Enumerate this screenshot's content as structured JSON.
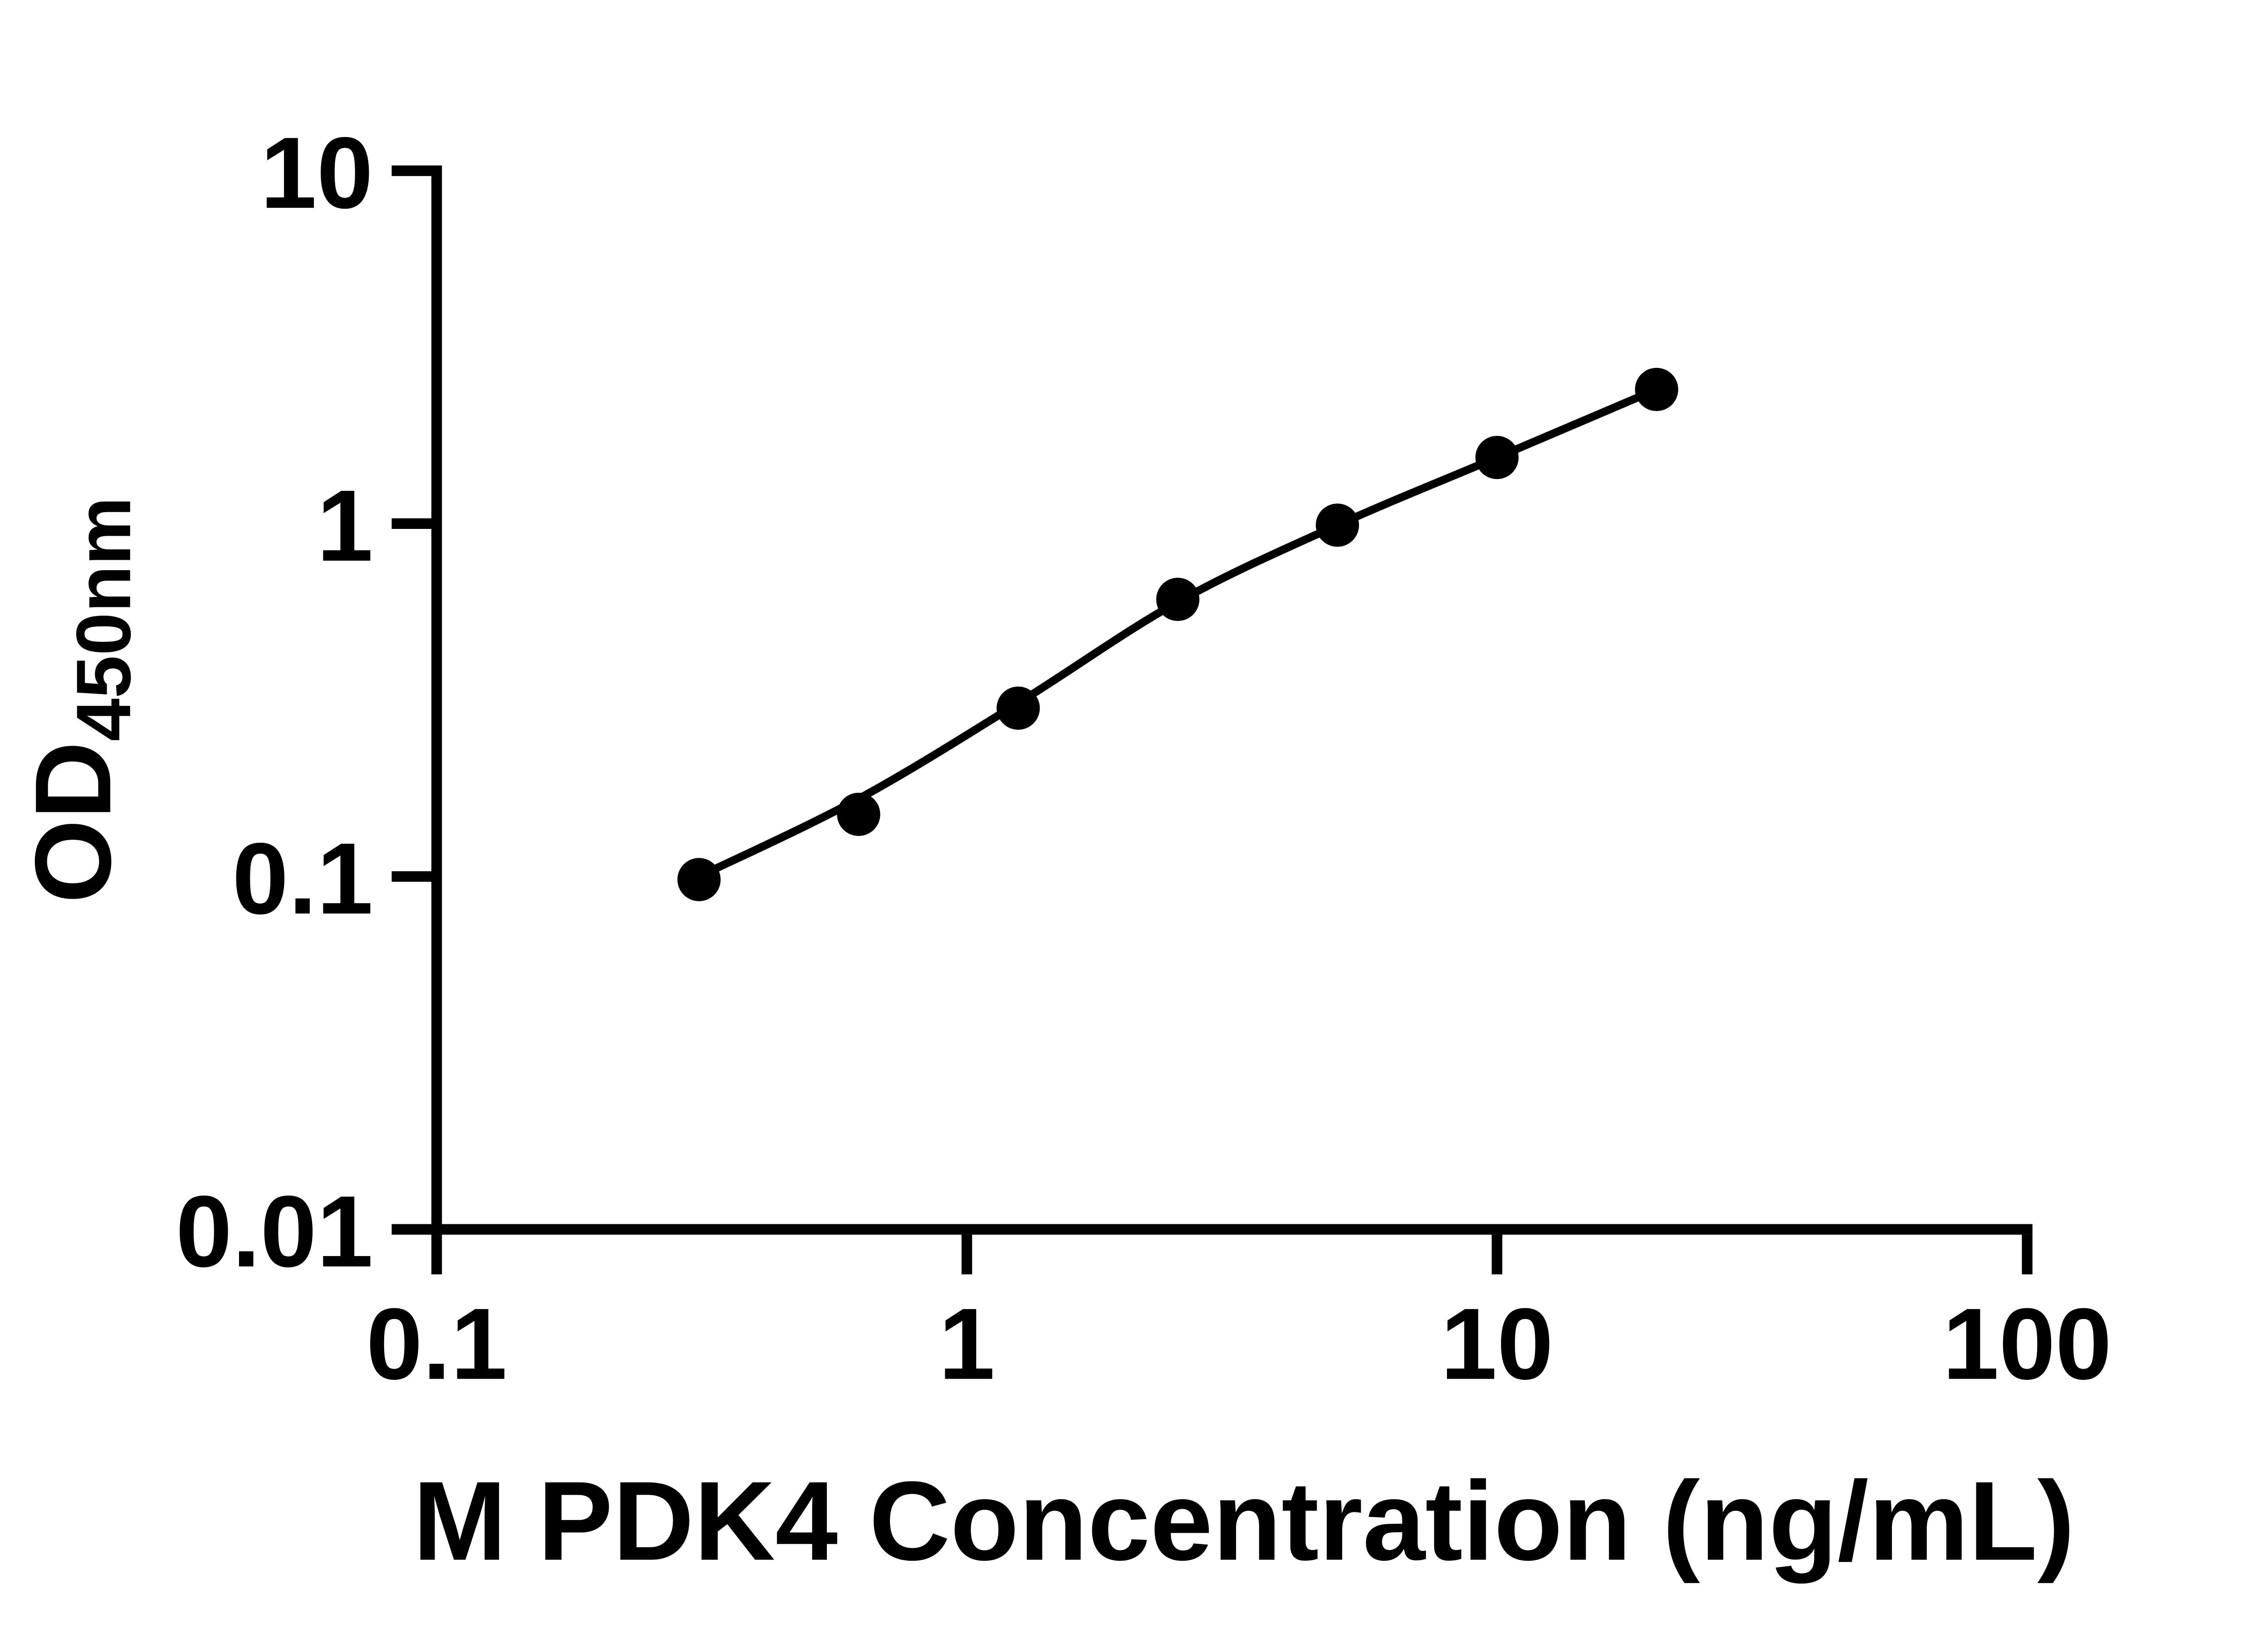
{
  "chart_data": {
    "type": "scatter",
    "title": "",
    "xlabel": "M PDK4 Concentration (ng/mL)",
    "ylabel_main": "OD",
    "ylabel_sub": "450nm",
    "x_scale": "log",
    "y_scale": "log",
    "xlim": [
      0.1,
      100
    ],
    "ylim": [
      0.01,
      10
    ],
    "grid": false,
    "legend": "none",
    "x_ticks": [
      {
        "label": "0.1",
        "value": 0.1
      },
      {
        "label": "1",
        "value": 1
      },
      {
        "label": "10",
        "value": 10
      },
      {
        "label": "100",
        "value": 100
      }
    ],
    "y_ticks": [
      {
        "label": "10",
        "value": 10
      },
      {
        "label": "1",
        "value": 1
      },
      {
        "label": "0.1",
        "value": 0.1
      },
      {
        "label": "0.01",
        "value": 0.01
      }
    ],
    "series": [
      {
        "marker": "filled-circle",
        "color": "#000000",
        "x": [
          0.3125,
          0.625,
          1.25,
          2.5,
          5,
          10,
          20
        ],
        "y": [
          0.098,
          0.15,
          0.3,
          0.61,
          0.99,
          1.54,
          2.4
        ]
      }
    ],
    "fit_curve": {
      "x": [
        0.3125,
        0.625,
        1.25,
        2.5,
        5,
        10,
        20
      ],
      "y": [
        0.1,
        0.166,
        0.31,
        0.6,
        0.99,
        1.54,
        2.4
      ]
    },
    "colors": {
      "axis": "#000000",
      "text": "#000000",
      "background": "#ffffff"
    }
  }
}
